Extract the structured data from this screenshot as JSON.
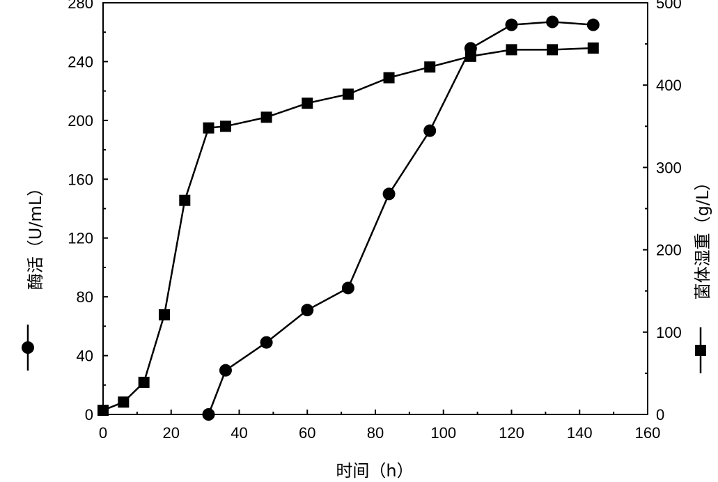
{
  "chart_data": {
    "type": "line",
    "xlabel": "时间（h）",
    "ylabel_left": "酶活（U/mL）",
    "ylabel_right": "菌体湿重（g/L）",
    "xlim": [
      0,
      160
    ],
    "ylim_left": [
      0,
      280
    ],
    "ylim_right": [
      0,
      500
    ],
    "x_ticks": [
      0,
      20,
      40,
      60,
      80,
      100,
      120,
      140,
      160
    ],
    "y_ticks_left": [
      0,
      40,
      80,
      120,
      160,
      200,
      240,
      280
    ],
    "y_ticks_right": [
      0,
      100,
      200,
      300,
      400,
      500
    ],
    "grid": false,
    "series": [
      {
        "marker": "circle",
        "axis": "left",
        "x": [
          31,
          36,
          48,
          60,
          72,
          84,
          96,
          108,
          120,
          132,
          144
        ],
        "values": [
          0,
          30,
          49,
          71,
          86,
          150,
          193,
          249,
          265,
          267,
          265
        ]
      },
      {
        "marker": "square",
        "axis": "right",
        "x": [
          0,
          6,
          12,
          18,
          24,
          31,
          36,
          48,
          60,
          72,
          84,
          96,
          108,
          120,
          132,
          144
        ],
        "values": [
          5,
          15,
          39,
          121,
          260,
          348,
          350,
          361,
          378,
          389,
          409,
          422,
          435,
          443,
          443,
          445
        ]
      }
    ],
    "colors": {
      "line": "#000000"
    }
  }
}
